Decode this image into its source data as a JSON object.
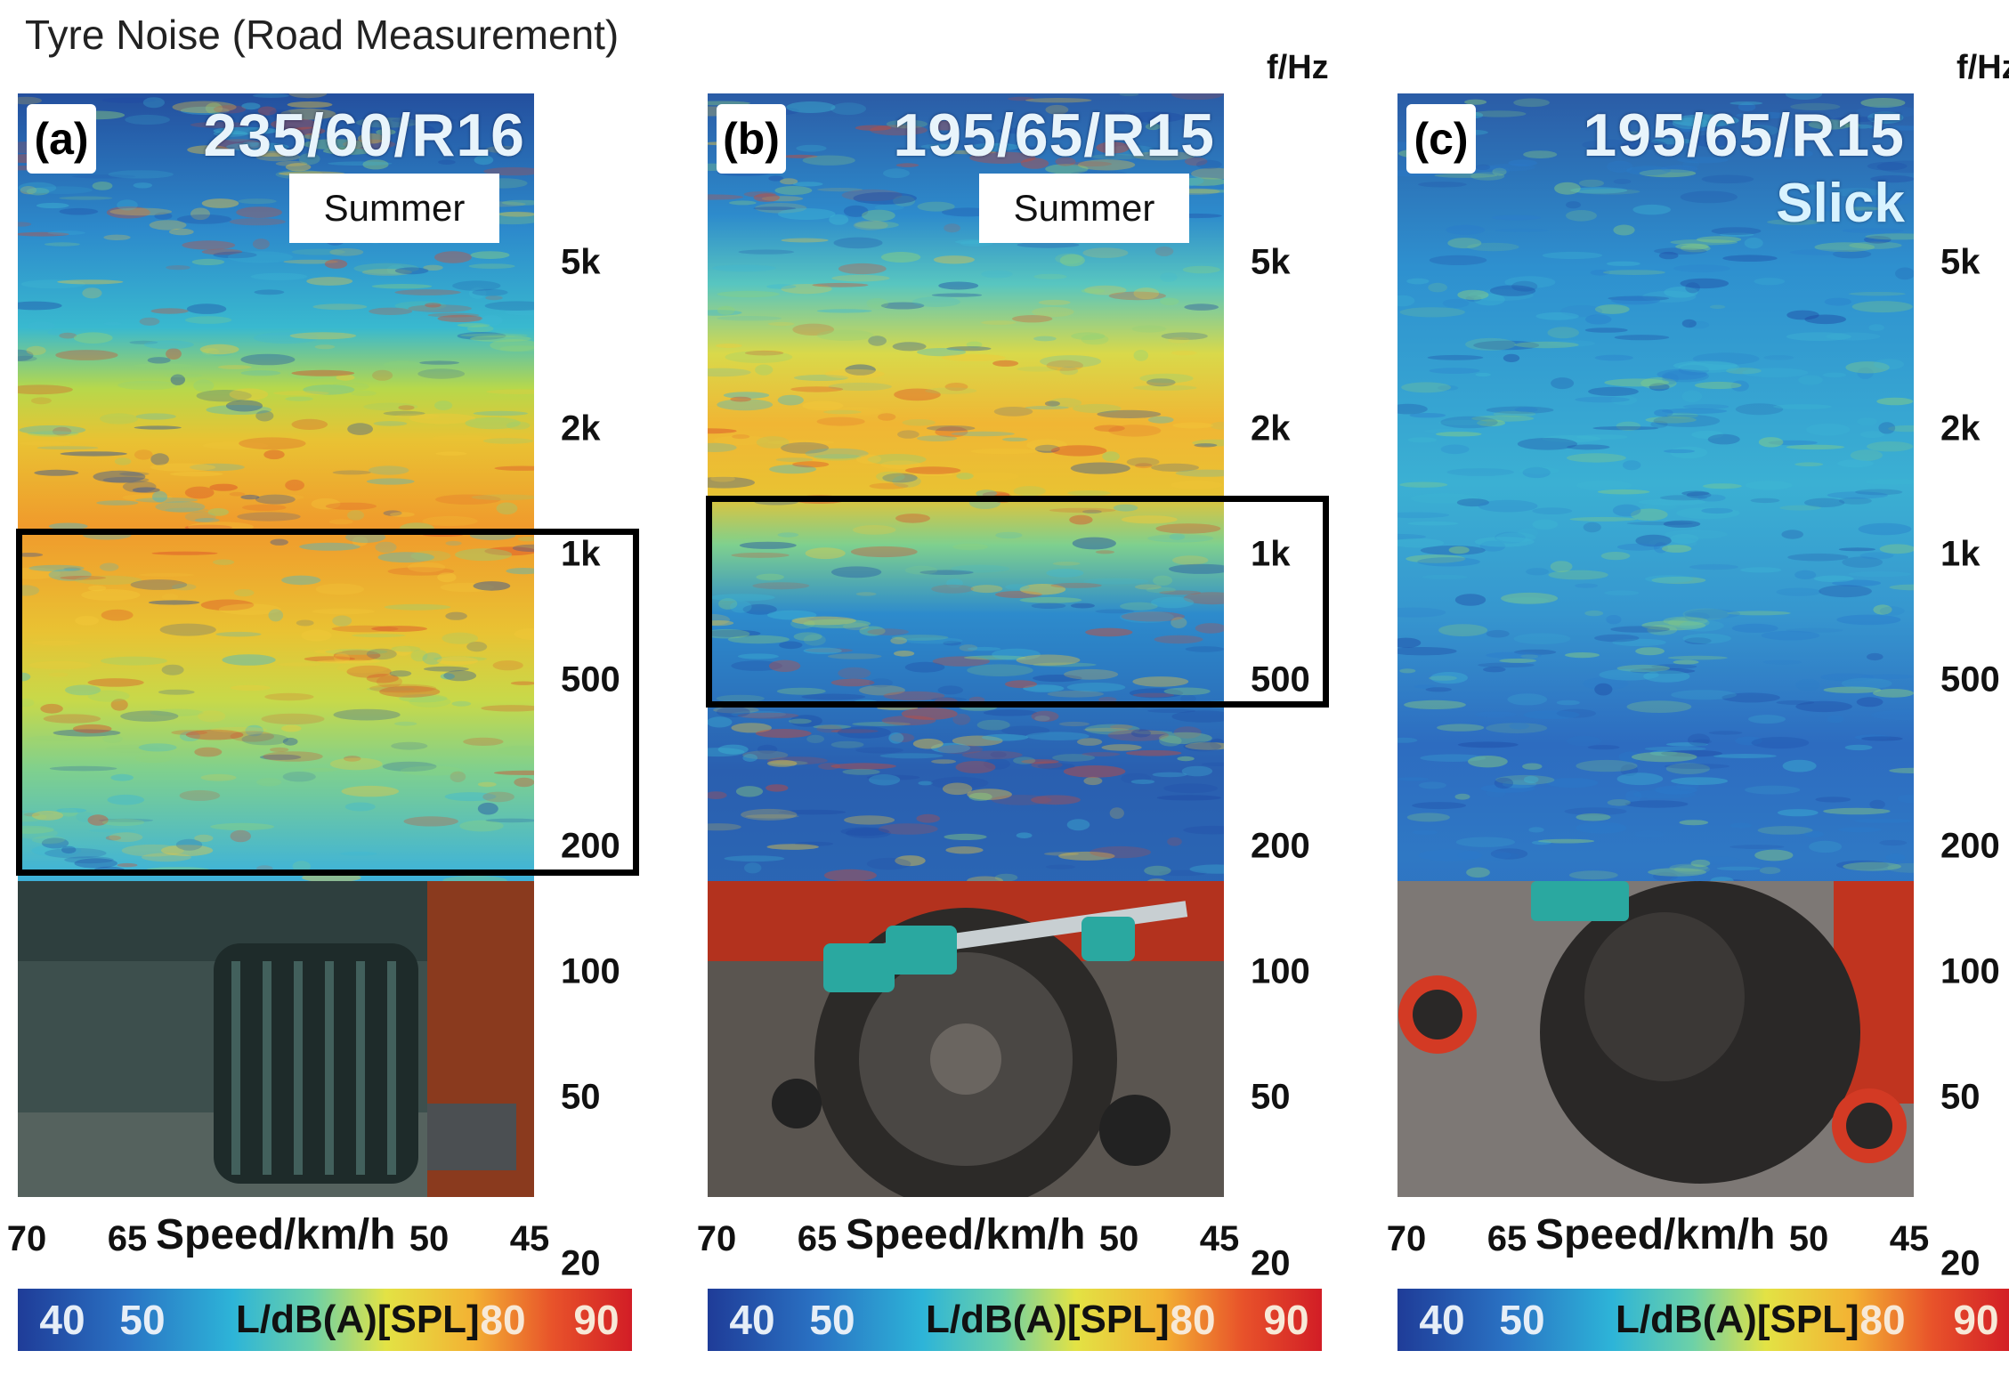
{
  "title": "Tyre Noise (Road Measurement)",
  "chart_data": {
    "type": "heatmap",
    "yaxis": {
      "label": "f/Hz",
      "scale": "log",
      "ticks": [
        20,
        50,
        100,
        200,
        500,
        1000,
        2000,
        5000
      ],
      "tick_labels": [
        "20",
        "50",
        "100",
        "200",
        "500",
        "1k",
        "2k",
        "5k"
      ]
    },
    "xaxis": {
      "label": "Speed/km/h",
      "reversed": true,
      "ticks": [
        70,
        65,
        50,
        45
      ],
      "tick_labels": [
        "70",
        "65",
        "50",
        "45"
      ]
    },
    "colorbar": {
      "label": "L/dB(A)[SPL]",
      "ticks": [
        40,
        50,
        80,
        90
      ],
      "tick_labels": [
        "40",
        "50",
        "80",
        "90"
      ],
      "range": [
        40,
        90
      ]
    },
    "panels": [
      {
        "label": "(a)",
        "tyre": "235/60/R16",
        "type_label": "Summer",
        "highlight_hz": [
          170,
          1150
        ],
        "highlight_hz_labels": [
          "200",
          "1k"
        ]
      },
      {
        "label": "(b)",
        "tyre": "195/65/R15",
        "type_label": "Summer",
        "highlight_hz": [
          430,
          1380
        ],
        "highlight_hz_labels": [
          "500",
          "1k"
        ]
      },
      {
        "label": "(c)",
        "tyre": "195/65/R15",
        "type_label": "Slick",
        "highlight_hz": null
      }
    ]
  },
  "colors": {
    "low": "#1f3c98",
    "mid": "#2db4d8",
    "warm": "#e3e244",
    "high": "#d21d26"
  },
  "photos": [
    "tyre-rear-view",
    "wheel-with-microphones",
    "slick-wheel-with-microphones"
  ]
}
